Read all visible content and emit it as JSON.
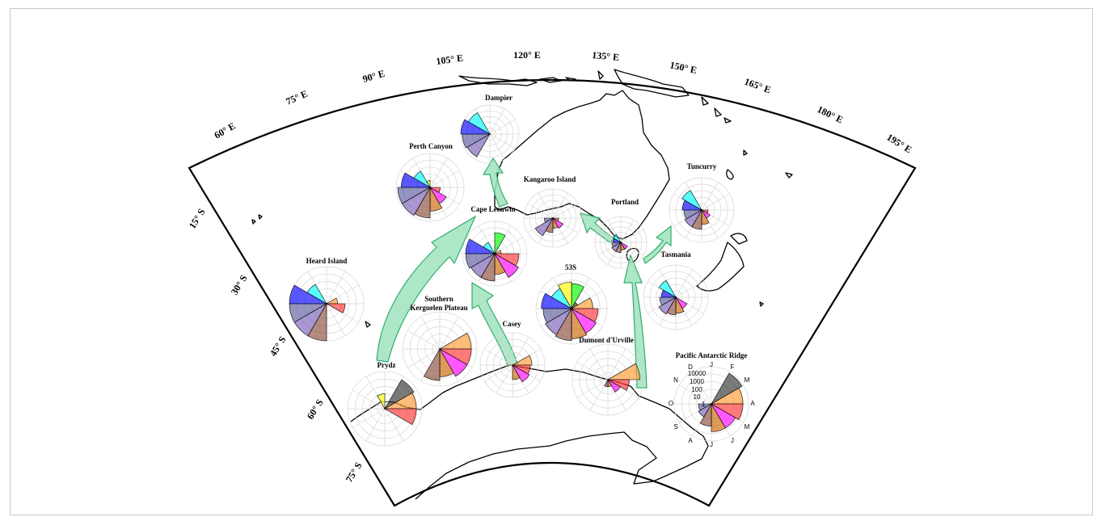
{
  "map": {
    "lon_labels": [
      "60° E",
      "75° E",
      "90° E",
      "105° E",
      "120° E",
      "135° E",
      "150° E",
      "165° E",
      "180° E",
      "195° E"
    ],
    "lat_labels": [
      "15° S",
      "30° S",
      "45° S",
      "60° S",
      "75° S"
    ]
  },
  "months": [
    "J",
    "F",
    "M",
    "A",
    "M",
    "J",
    "J",
    "A",
    "S",
    "O",
    "N",
    "D"
  ],
  "month_colors": [
    "#00ff00",
    "#333333",
    "#ff9933",
    "#ff3333",
    "#ff00ff",
    "#cc6600",
    "#8b4c39",
    "#7a5fb8",
    "#5a5aa0",
    "#0000ff",
    "#00ffff",
    "#ffff00"
  ],
  "scale_labels": [
    "10000",
    "1000",
    "100",
    "10",
    "1"
  ],
  "sites": [
    {
      "id": "dampier",
      "name": "Dampier",
      "r": [
        0,
        0,
        0,
        0,
        0,
        0,
        0,
        0.9,
        0.95,
        1.0,
        0.85,
        0
      ]
    },
    {
      "id": "perth-canyon",
      "name": "Perth Canyon",
      "r": [
        0,
        0,
        0,
        0.3,
        0.55,
        0.7,
        0.9,
        0.95,
        0.95,
        0.85,
        0.55,
        0.2
      ]
    },
    {
      "id": "kangaroo-island",
      "name": "Kangaroo Island",
      "r": [
        0,
        0,
        0,
        0.2,
        0.4,
        0.35,
        0.5,
        0.7,
        0.3,
        0,
        0,
        0
      ]
    },
    {
      "id": "cape-leeuwin",
      "name": "Cape Leeuwin",
      "r": [
        0.65,
        0,
        0.2,
        0.75,
        0.85,
        0.65,
        0.85,
        0.85,
        0.9,
        0.9,
        0.4,
        0
      ]
    },
    {
      "id": "portland",
      "name": "Portland",
      "r": [
        0,
        0,
        0,
        0,
        0.3,
        0.3,
        0.4,
        0.4,
        0.35,
        0.3,
        0.35,
        0
      ]
    },
    {
      "id": "tuncurry",
      "name": "Tuncurry",
      "r": [
        0,
        0,
        0,
        0.2,
        0.3,
        0.45,
        0.6,
        0.6,
        0.55,
        0.6,
        0.7,
        0
      ]
    },
    {
      "id": "heard-island",
      "name": "Heard Island",
      "r": [
        0,
        0,
        0.3,
        0.5,
        0,
        0,
        1.0,
        1.0,
        1.0,
        1.0,
        0.6,
        0
      ]
    },
    {
      "id": "53s",
      "name": "53S",
      "r": [
        0.7,
        0.2,
        0.6,
        0.75,
        0.8,
        0.85,
        0.9,
        0.85,
        0.8,
        0.85,
        0.65,
        0.75
      ]
    },
    {
      "id": "tasmania",
      "name": "Tasmania",
      "r": [
        0,
        0,
        0,
        0,
        0.4,
        0.5,
        0.55,
        0.6,
        0.5,
        0.45,
        0.6,
        0
      ]
    },
    {
      "id": "southern-kerguelen",
      "name": "Southern Kerguelen Plateau",
      "r": [
        0,
        0,
        0.85,
        0.85,
        0.85,
        0.75,
        0.85,
        0,
        0,
        0,
        0,
        0
      ]
    },
    {
      "id": "casey",
      "name": "Casey",
      "r": [
        0,
        0,
        0.6,
        0.55,
        0.6,
        0.45,
        0,
        0,
        0,
        0,
        0,
        0
      ]
    },
    {
      "id": "dumont-durville",
      "name": "Dumont d'Urville",
      "r": [
        0,
        0,
        0.9,
        0.6,
        0.4,
        0.2,
        0.2,
        0,
        0,
        0,
        0,
        0
      ]
    },
    {
      "id": "prydz",
      "name": "Prydz",
      "r": [
        0,
        0.9,
        0.85,
        0.85,
        0,
        0,
        0,
        0,
        0,
        0,
        0,
        0.4
      ]
    },
    {
      "id": "pacific-antarctic-ridge",
      "name": "Pacific Antarctic Ridge",
      "r": [
        0,
        0.95,
        0.85,
        0.85,
        0.75,
        0.75,
        0.6,
        0.4,
        0.35,
        0,
        0,
        0
      ]
    }
  ]
}
